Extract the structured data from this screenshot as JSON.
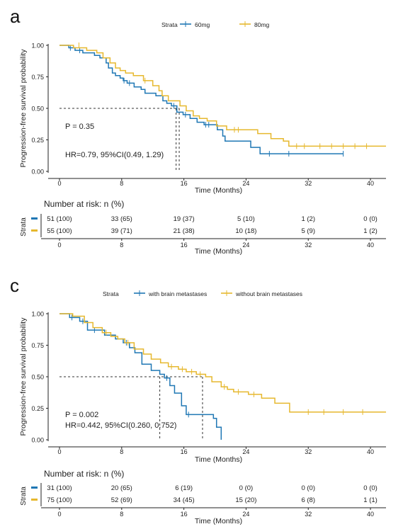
{
  "panels": [
    {
      "letter": "a",
      "legend_title": "Strata",
      "ylabel": "Progression-free survival probability",
      "xlabel": "Time (Months)",
      "annotation_p": "P = 0.35",
      "annotation_hr": "HR=0.79, 95%CI(0.49, 1.29)",
      "risk_title": "Number at risk: n (%)",
      "risk_ylabel": "Strata",
      "risk_xlabel": "Time (Months)"
    },
    {
      "letter": "c",
      "legend_title": "Strata",
      "ylabel": "Progression-free survival probability",
      "xlabel": "Time (Months)",
      "annotation_p": "P = 0.002",
      "annotation_hr": "HR=0.442, 95%CI(0.260, 0.752)",
      "risk_title": "Number at risk: n (%)",
      "risk_ylabel": "Strata",
      "risk_xlabel": "Time (Months)"
    }
  ],
  "colors": {
    "blue": "#1f77b4",
    "gold": "#e6b82e",
    "axis": "#222222",
    "dash": "#333333"
  },
  "chart_data": [
    {
      "type": "line",
      "subtype": "kaplan-meier",
      "xlim": [
        0,
        42
      ],
      "ylim": [
        0,
        1
      ],
      "xticks": [
        "0",
        "8",
        "16",
        "24",
        "32",
        "40"
      ],
      "yticks": [
        "0.00",
        "0.25",
        "0.50",
        "0.75",
        "1.00"
      ],
      "median_lines": [
        15.0,
        15.4
      ],
      "series": [
        {
          "name": "60mg",
          "color": "blue",
          "steps": [
            [
              0,
              1.0
            ],
            [
              1.2,
              0.98
            ],
            [
              2.0,
              0.96
            ],
            [
              3.0,
              0.94
            ],
            [
              4.5,
              0.92
            ],
            [
              5.2,
              0.9
            ],
            [
              6.0,
              0.86
            ],
            [
              6.3,
              0.82
            ],
            [
              6.8,
              0.78
            ],
            [
              7.2,
              0.76
            ],
            [
              7.8,
              0.74
            ],
            [
              8.2,
              0.72
            ],
            [
              8.7,
              0.7
            ],
            [
              9.6,
              0.67
            ],
            [
              10.5,
              0.65
            ],
            [
              11.0,
              0.62
            ],
            [
              12.4,
              0.6
            ],
            [
              13.3,
              0.56
            ],
            [
              13.8,
              0.54
            ],
            [
              14.4,
              0.52
            ],
            [
              15.1,
              0.47
            ],
            [
              15.9,
              0.45
            ],
            [
              16.8,
              0.42
            ],
            [
              17.7,
              0.39
            ],
            [
              18.6,
              0.37
            ],
            [
              20.3,
              0.33
            ],
            [
              21.0,
              0.28
            ],
            [
              21.3,
              0.24
            ],
            [
              24.6,
              0.19
            ],
            [
              25.8,
              0.14
            ],
            [
              36.5,
              0.14
            ]
          ],
          "censors": [
            [
              1.4,
              0.98
            ],
            [
              2.6,
              0.96
            ],
            [
              8.3,
              0.72
            ],
            [
              9.0,
              0.7
            ],
            [
              14.7,
              0.52
            ],
            [
              16.2,
              0.45
            ],
            [
              18.8,
              0.37
            ],
            [
              19.2,
              0.37
            ],
            [
              27.0,
              0.14
            ],
            [
              29.5,
              0.14
            ],
            [
              36.5,
              0.14
            ]
          ]
        },
        {
          "name": "80mg",
          "color": "gold",
          "steps": [
            [
              0,
              1.0
            ],
            [
              1.8,
              0.98
            ],
            [
              3.5,
              0.96
            ],
            [
              4.8,
              0.94
            ],
            [
              5.6,
              0.9
            ],
            [
              6.5,
              0.86
            ],
            [
              7.2,
              0.82
            ],
            [
              7.8,
              0.8
            ],
            [
              8.5,
              0.78
            ],
            [
              9.5,
              0.76
            ],
            [
              10.8,
              0.72
            ],
            [
              12.0,
              0.68
            ],
            [
              12.8,
              0.64
            ],
            [
              13.2,
              0.6
            ],
            [
              14.0,
              0.56
            ],
            [
              15.5,
              0.52
            ],
            [
              16.3,
              0.48
            ],
            [
              17.2,
              0.44
            ],
            [
              18.0,
              0.42
            ],
            [
              19.0,
              0.4
            ],
            [
              20.2,
              0.36
            ],
            [
              21.5,
              0.33
            ],
            [
              25.5,
              0.3
            ],
            [
              27.2,
              0.26
            ],
            [
              28.8,
              0.24
            ],
            [
              29.5,
              0.2
            ],
            [
              42,
              0.2
            ]
          ],
          "censors": [
            [
              2.5,
              1.0
            ],
            [
              11.0,
              0.72
            ],
            [
              22.5,
              0.33
            ],
            [
              23.0,
              0.33
            ],
            [
              30.5,
              0.2
            ],
            [
              31.5,
              0.2
            ],
            [
              33.5,
              0.2
            ],
            [
              35.0,
              0.2
            ],
            [
              36.5,
              0.2
            ],
            [
              38.0,
              0.2
            ],
            [
              39.5,
              0.2
            ]
          ]
        }
      ],
      "risk_table": [
        {
          "label": "60mg",
          "color": "blue",
          "values": [
            "51 (100)",
            "33 (65)",
            "19 (37)",
            "5 (10)",
            "1 (2)",
            "0 (0)"
          ]
        },
        {
          "label": "80mg",
          "color": "gold",
          "values": [
            "55 (100)",
            "39 (71)",
            "21 (38)",
            "10 (18)",
            "5 (9)",
            "1 (2)"
          ]
        }
      ]
    },
    {
      "type": "line",
      "subtype": "kaplan-meier",
      "xlim": [
        0,
        42
      ],
      "ylim": [
        0,
        1
      ],
      "xticks": [
        "0",
        "8",
        "16",
        "24",
        "32",
        "40"
      ],
      "yticks": [
        "0.00",
        "0.25",
        "0.50",
        "0.75",
        "1.00"
      ],
      "median_lines": [
        12.9,
        18.4
      ],
      "series": [
        {
          "name": "with brain metastases",
          "color": "blue",
          "steps": [
            [
              0,
              1.0
            ],
            [
              1.3,
              0.97
            ],
            [
              2.6,
              0.94
            ],
            [
              3.6,
              0.87
            ],
            [
              5.8,
              0.83
            ],
            [
              7.2,
              0.8
            ],
            [
              8.2,
              0.77
            ],
            [
              9.0,
              0.73
            ],
            [
              9.7,
              0.69
            ],
            [
              10.6,
              0.6
            ],
            [
              11.8,
              0.55
            ],
            [
              12.9,
              0.52
            ],
            [
              13.5,
              0.49
            ],
            [
              14.2,
              0.43
            ],
            [
              14.8,
              0.37
            ],
            [
              15.7,
              0.27
            ],
            [
              16.3,
              0.2
            ],
            [
              19.8,
              0.17
            ],
            [
              20.2,
              0.1
            ],
            [
              20.8,
              0.0
            ]
          ],
          "censors": [
            [
              1.6,
              0.97
            ],
            [
              3.0,
              0.94
            ],
            [
              4.5,
              0.87
            ],
            [
              8.6,
              0.77
            ],
            [
              13.8,
              0.49
            ],
            [
              16.6,
              0.2
            ]
          ]
        },
        {
          "name": "without brain metastases",
          "color": "gold",
          "steps": [
            [
              0,
              1.0
            ],
            [
              1.7,
              0.98
            ],
            [
              3.2,
              0.93
            ],
            [
              4.3,
              0.89
            ],
            [
              5.5,
              0.85
            ],
            [
              6.6,
              0.82
            ],
            [
              7.5,
              0.8
            ],
            [
              8.4,
              0.77
            ],
            [
              9.6,
              0.72
            ],
            [
              10.8,
              0.68
            ],
            [
              11.8,
              0.64
            ],
            [
              13.0,
              0.61
            ],
            [
              14.0,
              0.58
            ],
            [
              15.3,
              0.56
            ],
            [
              16.3,
              0.54
            ],
            [
              17.6,
              0.52
            ],
            [
              18.8,
              0.5
            ],
            [
              19.6,
              0.46
            ],
            [
              20.8,
              0.42
            ],
            [
              21.6,
              0.4
            ],
            [
              22.4,
              0.38
            ],
            [
              24.3,
              0.36
            ],
            [
              26.0,
              0.33
            ],
            [
              27.7,
              0.29
            ],
            [
              29.6,
              0.22
            ],
            [
              42,
              0.22
            ]
          ],
          "censors": [
            [
              6.0,
              0.85
            ],
            [
              8.8,
              0.77
            ],
            [
              14.4,
              0.58
            ],
            [
              15.8,
              0.56
            ],
            [
              17.0,
              0.54
            ],
            [
              18.1,
              0.52
            ],
            [
              21.2,
              0.42
            ],
            [
              23.0,
              0.38
            ],
            [
              25.0,
              0.36
            ],
            [
              32.0,
              0.22
            ],
            [
              34.0,
              0.22
            ],
            [
              36.5,
              0.22
            ],
            [
              39.0,
              0.22
            ]
          ]
        }
      ],
      "risk_table": [
        {
          "label": "with brain metastases",
          "color": "blue",
          "values": [
            "31 (100)",
            "20 (65)",
            "6 (19)",
            "0 (0)",
            "0 (0)",
            "0 (0)"
          ]
        },
        {
          "label": "without brain metastases",
          "color": "gold",
          "values": [
            "75 (100)",
            "52 (69)",
            "34 (45)",
            "15 (20)",
            "6 (8)",
            "1 (1)"
          ]
        }
      ]
    }
  ]
}
